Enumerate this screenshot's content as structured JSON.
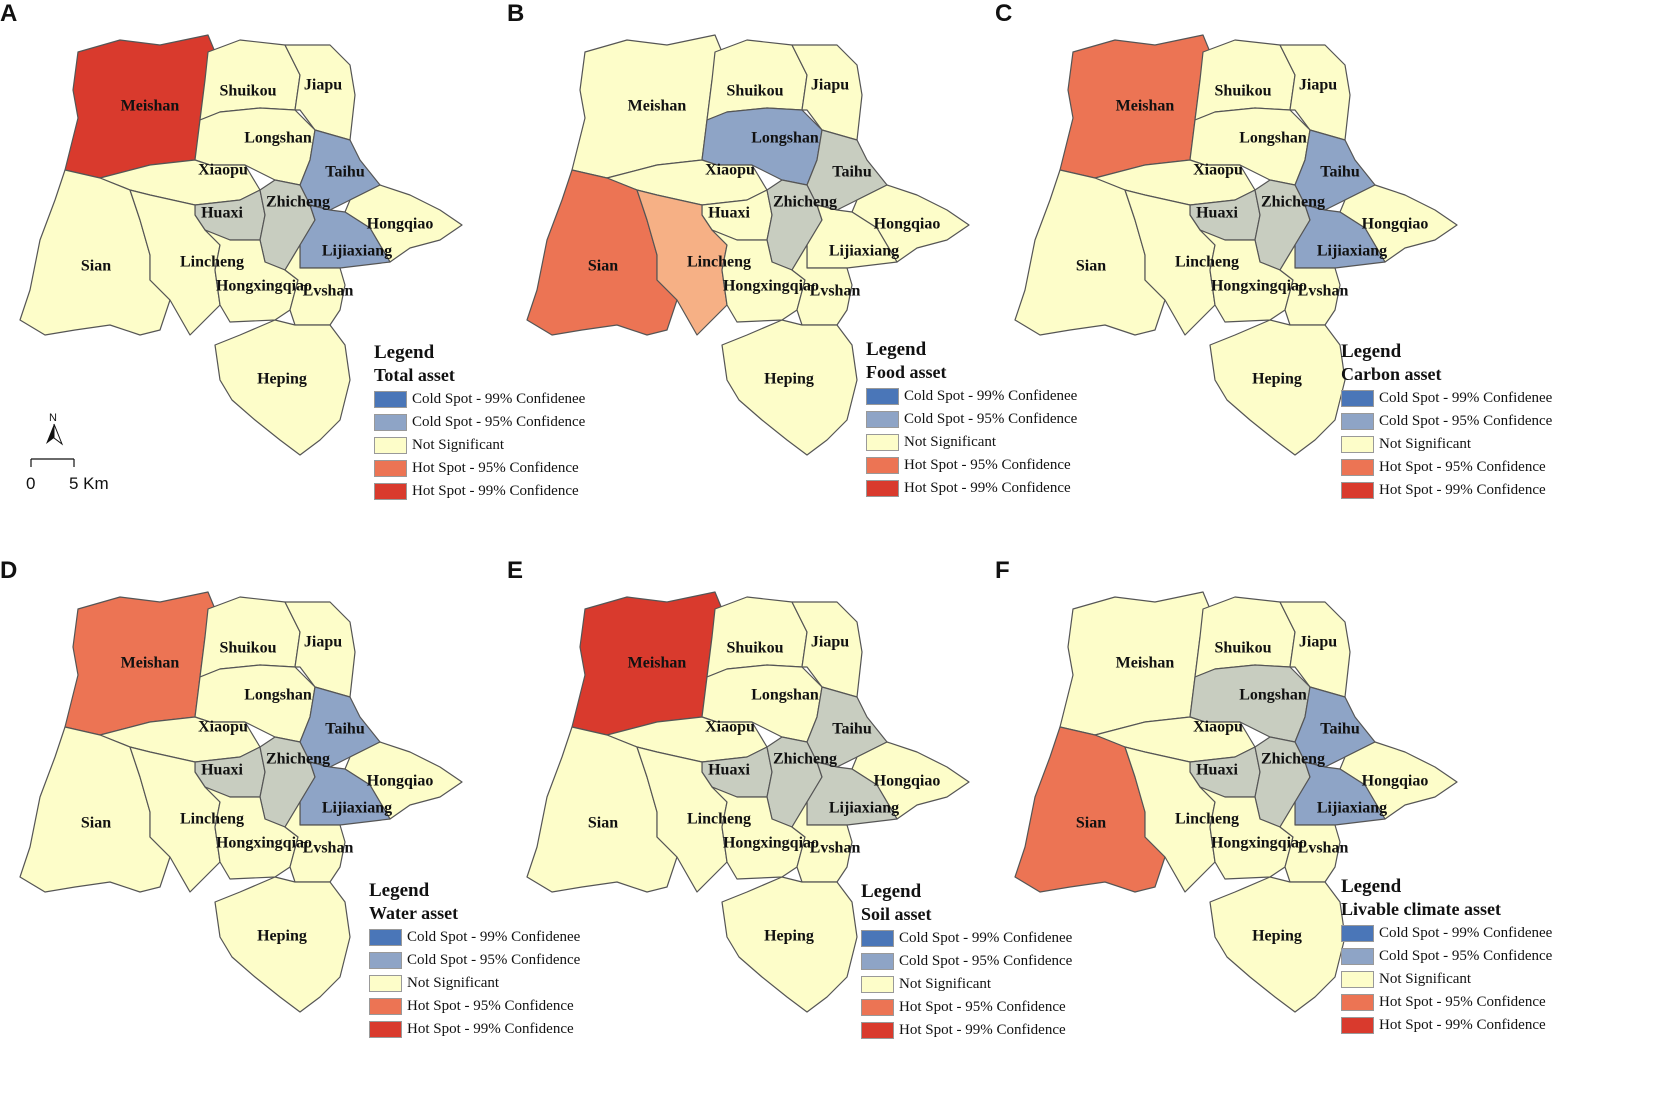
{
  "colors": {
    "cold_99": "#4a76b8",
    "cold_95": "#8ea4c6",
    "not_significant": "#fdfdc9",
    "hot_95": "#ec7454",
    "hot_99": "#d93a2d",
    "lincheng_food": "#f6b085",
    "neutral_gray": "#c8cdc0"
  },
  "legend": {
    "title": "Legend",
    "items": [
      {
        "key": "cold_99",
        "label": "Cold Spot - 99% Confidenee"
      },
      {
        "key": "cold_95",
        "label": "Cold Spot - 95% Confidence"
      },
      {
        "key": "not_significant",
        "label": "Not Significant"
      },
      {
        "key": "hot_95",
        "label": "Hot Spot - 95% Confidence"
      },
      {
        "key": "hot_99",
        "label": "Hot Spot - 99%  Confidence"
      }
    ]
  },
  "regions": [
    "Meishan",
    "Shuikou",
    "Jiapu",
    "Longshan",
    "Xiaopu",
    "Taihu",
    "Huaxi",
    "Zhicheng",
    "Hongqiao",
    "Sian",
    "Lincheng",
    "Lijiaxiang",
    "Hongxingqiao",
    "Lvshan",
    "Heping"
  ],
  "panels": [
    {
      "letter": "A",
      "subtitle": "Total asset",
      "classes": {
        "Meishan": "hot_99",
        "Taihu": "cold_95",
        "Lijiaxiang": "cold_95",
        "Huaxi": "neutral_gray",
        "Zhicheng": "neutral_gray"
      }
    },
    {
      "letter": "B",
      "subtitle": "Food asset",
      "classes": {
        "Sian": "hot_95",
        "Lincheng": "lincheng_food",
        "Longshan": "cold_95",
        "Taihu": "neutral_gray",
        "Zhicheng": "neutral_gray"
      }
    },
    {
      "letter": "C",
      "subtitle": "Carbon asset",
      "classes": {
        "Meishan": "hot_95",
        "Taihu": "cold_95",
        "Lijiaxiang": "cold_95",
        "Huaxi": "neutral_gray",
        "Zhicheng": "neutral_gray"
      }
    },
    {
      "letter": "D",
      "subtitle": "Water asset",
      "classes": {
        "Meishan": "hot_95",
        "Taihu": "cold_95",
        "Lijiaxiang": "cold_95",
        "Huaxi": "neutral_gray",
        "Zhicheng": "neutral_gray"
      }
    },
    {
      "letter": "E",
      "subtitle": "Soil asset",
      "classes": {
        "Meishan": "hot_99",
        "Taihu": "neutral_gray",
        "Lijiaxiang": "neutral_gray",
        "Huaxi": "neutral_gray",
        "Zhicheng": "neutral_gray"
      }
    },
    {
      "letter": "F",
      "subtitle": "Livable climate asset",
      "classes": {
        "Sian": "hot_95",
        "Longshan": "neutral_gray",
        "Taihu": "cold_95",
        "Lijiaxiang": "cold_95",
        "Huaxi": "neutral_gray",
        "Zhicheng": "neutral_gray"
      }
    }
  ],
  "scale_bar": {
    "north": "N",
    "zero": "0",
    "distance": "5 Km"
  }
}
